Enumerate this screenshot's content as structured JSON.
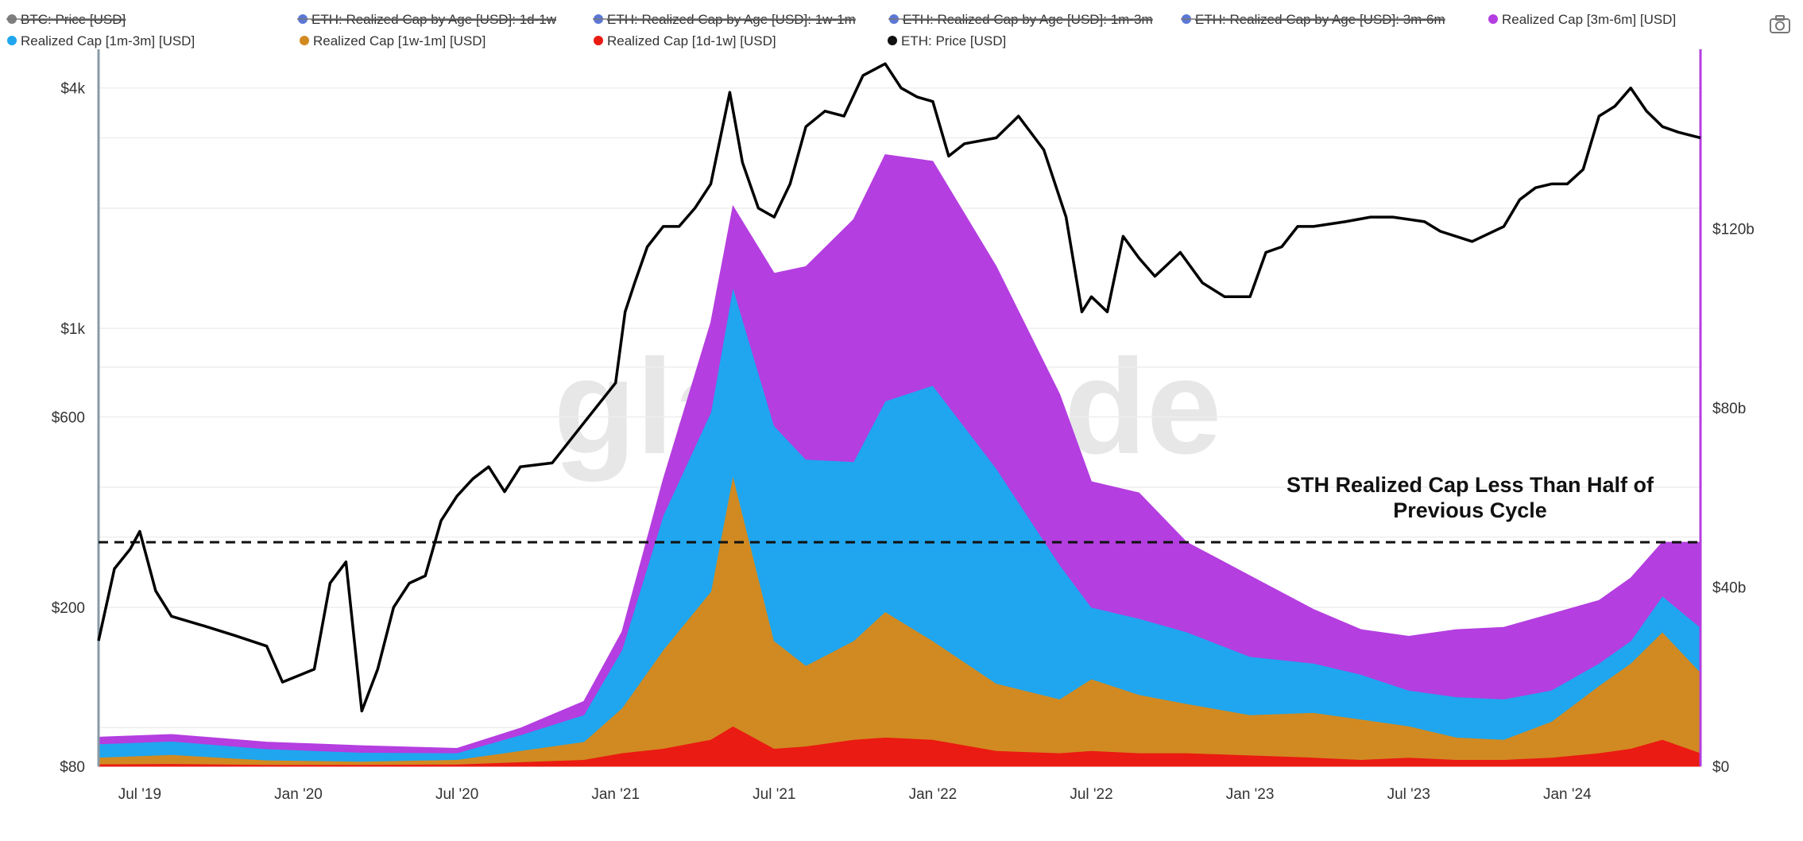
{
  "chart_data": {
    "type": "area",
    "watermark": "glassnode",
    "annotation": [
      "STH Realized Cap Less Than Half of",
      "Previous Cycle"
    ],
    "threshold_line_value": 50000000000,
    "x_ticks": [
      "Jul '19",
      "Jan '20",
      "Jul '20",
      "Jan '21",
      "Jul '21",
      "Jan '22",
      "Jul '22",
      "Jan '23",
      "Jul '23",
      "Jan '24"
    ],
    "x_tick_dates": [
      2019.5,
      2020.0,
      2020.5,
      2021.0,
      2021.5,
      2022.0,
      2022.5,
      2023.0,
      2023.5,
      2024.0
    ],
    "x_range": [
      2019.37,
      2024.42
    ],
    "left_axis": {
      "scale": "log",
      "ticks": [
        "$4k",
        "$1k",
        "$600",
        "$200",
        "$80"
      ],
      "tick_values": [
        4000,
        1000,
        600,
        200,
        80
      ],
      "range": [
        80,
        5000
      ]
    },
    "right_axis": {
      "scale": "linear",
      "ticks": [
        "$120b",
        "$80b",
        "$40b",
        "$0"
      ],
      "tick_values": [
        120000000000,
        80000000000,
        40000000000,
        0
      ],
      "range": [
        0,
        160000000000
      ]
    },
    "legend": [
      {
        "label": "BTC: Price [USD]",
        "color": "#7f7f7f",
        "hidden": true
      },
      {
        "label": "ETH: Realized Cap by Age [USD]: 1d-1w",
        "color": "#5b78d6",
        "hidden": true
      },
      {
        "label": "ETH: Realized Cap by Age [USD]: 1w-1m",
        "color": "#5b78d6",
        "hidden": true
      },
      {
        "label": "ETH: Realized Cap by Age [USD]: 1m-3m",
        "color": "#5b78d6",
        "hidden": true
      },
      {
        "label": "ETH: Realized Cap by Age [USD]: 3m-6m",
        "color": "#5b78d6",
        "hidden": true
      },
      {
        "label": "Realized Cap [3m-6m] [USD]",
        "color": "#b43ee0",
        "hidden": false
      },
      {
        "label": "Realized Cap [1m-3m] [USD]",
        "color": "#1fa6ef",
        "hidden": false
      },
      {
        "label": "Realized Cap [1w-1m] [USD]",
        "color": "#d18a21",
        "hidden": false
      },
      {
        "label": "Realized Cap [1d-1w] [USD]",
        "color": "#ea1b12",
        "hidden": false
      },
      {
        "label": "ETH: Price [USD]",
        "color": "#111111",
        "hidden": false
      }
    ],
    "stack_x": [
      2019.37,
      2019.6,
      2019.9,
      2020.2,
      2020.5,
      2020.7,
      2020.9,
      2021.02,
      2021.15,
      2021.3,
      2021.37,
      2021.5,
      2021.6,
      2021.75,
      2021.85,
      2022.0,
      2022.2,
      2022.4,
      2022.5,
      2022.65,
      2022.8,
      2023.0,
      2023.2,
      2023.35,
      2023.5,
      2023.65,
      2023.8,
      2023.95,
      2024.1,
      2024.2,
      2024.3,
      2024.42
    ],
    "series": [
      {
        "name": "Realized Cap [1d-1w] [USD]",
        "color": "#ea1b12",
        "values": [
          0.5,
          0.6,
          0.4,
          0.4,
          0.5,
          1.0,
          1.5,
          3.0,
          4.0,
          6.0,
          9.0,
          4.0,
          4.5,
          6.0,
          6.5,
          6.0,
          3.5,
          3.0,
          3.5,
          3.0,
          3.0,
          2.5,
          2.0,
          1.5,
          2.0,
          1.5,
          1.5,
          2.0,
          3.0,
          4.0,
          6.0,
          3.0
        ]
      },
      {
        "name": "Realized Cap [1w-1m] [USD]",
        "color": "#d18a21",
        "values": [
          1.5,
          2.0,
          1.0,
          0.7,
          1.0,
          2.5,
          4.0,
          10.0,
          22.0,
          33.0,
          56.0,
          24.0,
          18.0,
          22.0,
          28.0,
          22.0,
          15.0,
          12.0,
          16.0,
          13.0,
          11.0,
          9.0,
          10.0,
          9.0,
          7.0,
          5.0,
          4.5,
          8.0,
          15.0,
          19.0,
          24.0,
          18.0
        ]
      },
      {
        "name": "Realized Cap [1m-3m] [USD]",
        "color": "#1fa6ef",
        "values": [
          3.0,
          3.0,
          2.5,
          2.0,
          1.5,
          3.5,
          6.0,
          13.0,
          30.0,
          40.0,
          42.0,
          48.0,
          46.0,
          40.0,
          47.0,
          57.0,
          48.0,
          30.0,
          16.0,
          17.0,
          16.0,
          13.0,
          11.0,
          10.0,
          8.0,
          9.0,
          9.0,
          7.0,
          5.0,
          5.0,
          8.0,
          10.0
        ]
      },
      {
        "name": "Realized Cap [3m-6m] [USD]",
        "color": "#b43ee0",
        "values": [
          1.5,
          1.5,
          1.5,
          1.5,
          1.0,
          1.5,
          3.0,
          4.0,
          8.0,
          20.0,
          18.0,
          34.0,
          43.0,
          54.0,
          55.0,
          50.0,
          45.0,
          38.0,
          28.0,
          28.0,
          20.0,
          18.0,
          12.0,
          10.0,
          12.0,
          15.0,
          16.0,
          17.0,
          14.0,
          14.0,
          12.0,
          19.0
        ]
      }
    ],
    "stack_units": "billions USD",
    "eth_price_x": [
      2019.37,
      2019.42,
      2019.47,
      2019.5,
      2019.55,
      2019.6,
      2019.7,
      2019.8,
      2019.9,
      2019.95,
      2020.05,
      2020.1,
      2020.15,
      2020.2,
      2020.25,
      2020.3,
      2020.35,
      2020.4,
      2020.45,
      2020.5,
      2020.55,
      2020.6,
      2020.65,
      2020.7,
      2020.8,
      2020.9,
      2021.0,
      2021.03,
      2021.06,
      2021.1,
      2021.15,
      2021.2,
      2021.25,
      2021.3,
      2021.36,
      2021.4,
      2021.45,
      2021.5,
      2021.55,
      2021.6,
      2021.66,
      2021.72,
      2021.78,
      2021.85,
      2021.9,
      2021.95,
      2022.0,
      2022.05,
      2022.1,
      2022.2,
      2022.27,
      2022.35,
      2022.42,
      2022.47,
      2022.5,
      2022.55,
      2022.6,
      2022.65,
      2022.7,
      2022.78,
      2022.85,
      2022.92,
      2023.0,
      2023.05,
      2023.1,
      2023.15,
      2023.2,
      2023.3,
      2023.38,
      2023.45,
      2023.55,
      2023.6,
      2023.7,
      2023.8,
      2023.85,
      2023.9,
      2023.95,
      2024.0,
      2024.05,
      2024.1,
      2024.15,
      2024.2,
      2024.25,
      2024.3,
      2024.35,
      2024.42
    ],
    "eth_price": [
      165,
      250,
      280,
      310,
      220,
      190,
      180,
      170,
      160,
      130,
      140,
      230,
      260,
      110,
      140,
      200,
      230,
      240,
      330,
      380,
      420,
      450,
      390,
      450,
      460,
      580,
      730,
      1100,
      1300,
      1600,
      1800,
      1800,
      2000,
      2300,
      3900,
      2600,
      2000,
      1900,
      2300,
      3200,
      3500,
      3400,
      4300,
      4600,
      4000,
      3800,
      3700,
      2700,
      2900,
      3000,
      3400,
      2800,
      1900,
      1100,
      1200,
      1100,
      1700,
      1500,
      1350,
      1550,
      1300,
      1200,
      1200,
      1550,
      1600,
      1800,
      1800,
      1850,
      1900,
      1900,
      1850,
      1750,
      1650,
      1800,
      2100,
      2250,
      2300,
      2300,
      2500,
      3400,
      3600,
      4000,
      3500,
      3200,
      3100,
      3000
    ]
  }
}
